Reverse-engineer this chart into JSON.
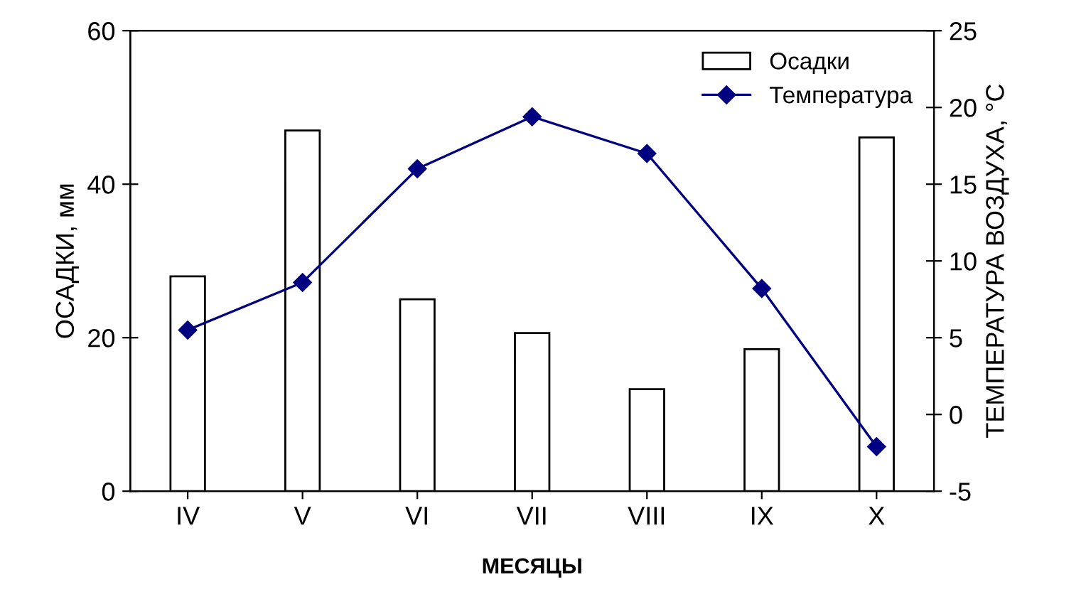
{
  "chart_data": {
    "type": "bar",
    "xlabel": "МЕСЯЦЫ",
    "ylabel": "ОСАДКИ, мм",
    "y2label": "ТЕМПЕРАТУРА ВОЗДУХА, °С",
    "categories": [
      "IV",
      "V",
      "VI",
      "VII",
      "VIII",
      "IX",
      "X"
    ],
    "series": [
      {
        "name": "Осадки",
        "color": "#ffffff",
        "values": [
          28,
          47,
          25,
          20.6,
          13.3,
          18.5,
          46.1
        ]
      },
      {
        "name": "Температура",
        "type": "line",
        "axis": "y2",
        "color": "#000080",
        "marker": "diamond",
        "values": [
          5.5,
          8.6,
          16.0,
          19.4,
          17.0,
          8.2,
          -2.1
        ]
      }
    ],
    "ylim": [
      0,
      60
    ],
    "yticks": [
      0,
      20,
      40,
      60
    ],
    "y2lim": [
      -5,
      25
    ],
    "y2ticks": [
      -5,
      0,
      5,
      10,
      15,
      20,
      25
    ],
    "grid": false,
    "legend": "top right"
  }
}
